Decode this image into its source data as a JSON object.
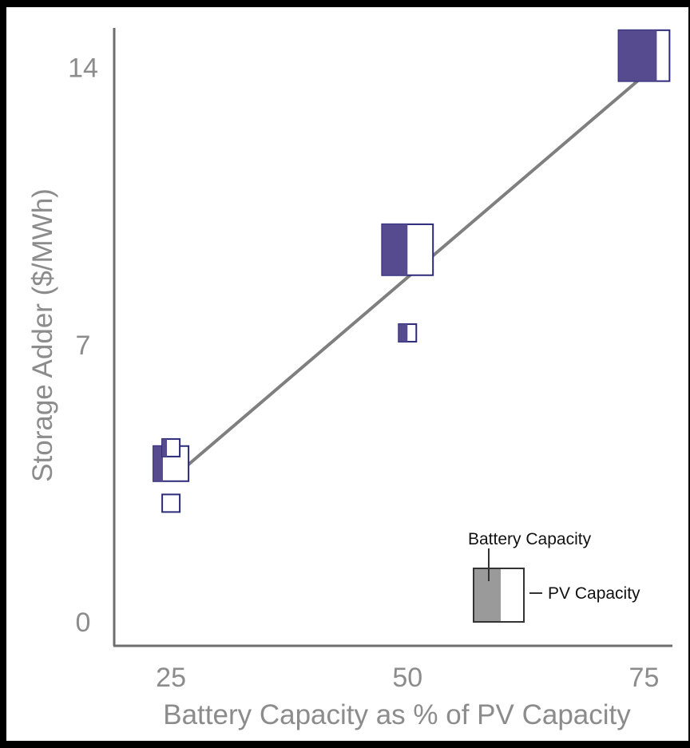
{
  "chart_data": {
    "type": "scatter",
    "title": "",
    "xlabel": "Battery Capacity as % of PV Capacity",
    "ylabel": "Storage Adder ($/MWh)",
    "x_ticks": [
      25,
      50,
      75
    ],
    "y_ticks": [
      0,
      7,
      14
    ],
    "xlim": [
      19,
      78
    ],
    "ylim": [
      -0.6,
      15
    ],
    "colors": {
      "battery": "#574b8f",
      "pv_outline": "#2e2a7a",
      "trend": "#7f7f7f",
      "axis": "#6e6e6e",
      "legend_battery": "#9a9a9a",
      "legend_outline": "#333333"
    },
    "marker_encoding": "box width ~ PV capacity, filled portion ~ battery capacity",
    "points": [
      {
        "x": 25,
        "y": 4.0,
        "pv_size": 1.0,
        "battery_fraction": 0.27
      },
      {
        "x": 25,
        "y": 4.4,
        "pv_size": 0.5,
        "battery_fraction": 0.27
      },
      {
        "x": 25,
        "y": 3.0,
        "pv_size": 0.5,
        "battery_fraction": 0.0
      },
      {
        "x": 50,
        "y": 7.3,
        "pv_size": 0.5,
        "battery_fraction": 0.5
      },
      {
        "x": 50,
        "y": 9.4,
        "pv_size": 1.45,
        "battery_fraction": 0.5
      },
      {
        "x": 75,
        "y": 14.3,
        "pv_size": 1.45,
        "battery_fraction": 0.75
      }
    ],
    "trendline": {
      "x": [
        25,
        75
      ],
      "y": [
        3.6,
        13.8
      ]
    },
    "legend": {
      "battery_label": "Battery Capacity",
      "pv_label": "PV Capacity"
    }
  }
}
